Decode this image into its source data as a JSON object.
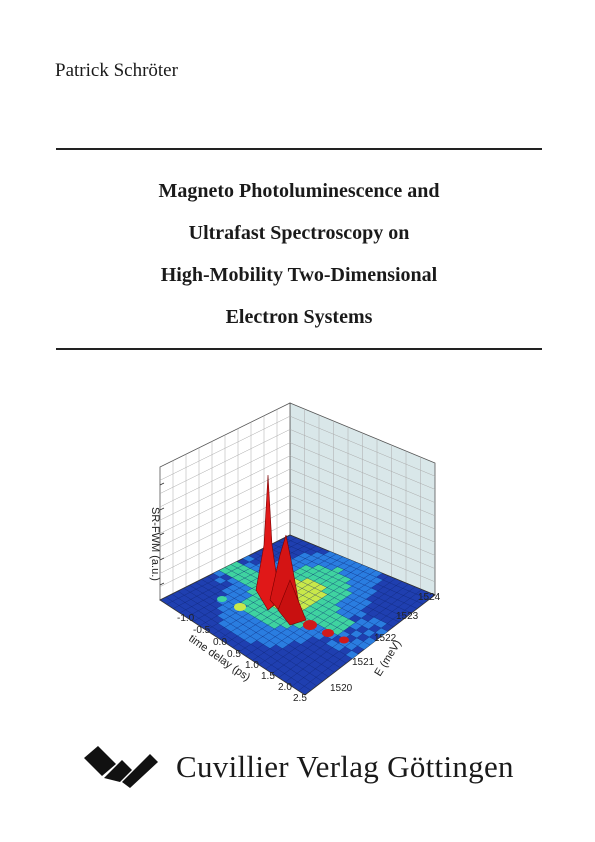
{
  "author": "Patrick Schröter",
  "title_lines": [
    "Magneto Photoluminescence and",
    "Ultrafast Spectroscopy on",
    "High-Mobility Two-Dimensional",
    "Electron Systems"
  ],
  "figure": {
    "z_axis_label": "SR-FWM (a.u.)",
    "x_axis_label": "time delay (ps)",
    "y_axis_label": "E (meV)",
    "x_ticks": [
      "-1.0",
      "-0.5",
      "0.0",
      "0.5",
      "1.0",
      "1.5",
      "2.0",
      "2.5"
    ],
    "y_ticks": [
      "1520",
      "1521",
      "1522",
      "1523",
      "1524"
    ],
    "colors": {
      "floor": "#1f3fb0",
      "floor_light": "#2a7de0",
      "mid": "#3fd3a0",
      "highlight": "#c8e84a",
      "peak": "#e01818",
      "back_wall": "#d8e6e8"
    }
  },
  "publisher": {
    "name": "Cuvillier Verlag Göttingen",
    "logo_icon": "cuvillier-logo-icon"
  }
}
